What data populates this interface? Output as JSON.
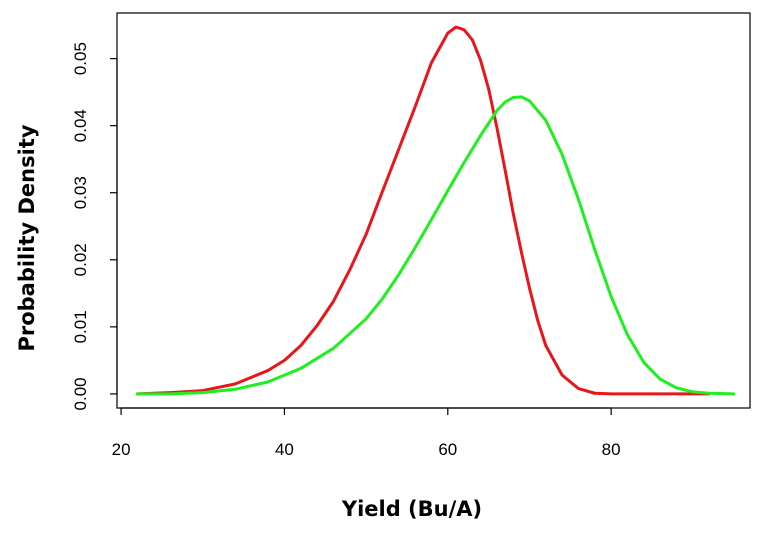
{
  "chart_data": {
    "type": "line",
    "title": "",
    "xlabel": "Yield (Bu/A)",
    "ylabel": "Probability Density",
    "xlim": [
      19.5,
      97
    ],
    "ylim": [
      -0.0021,
      0.0568
    ],
    "x_ticks": [
      20,
      40,
      60,
      80
    ],
    "x_tick_labels": [
      "20",
      "40",
      "60",
      "80"
    ],
    "y_ticks": [
      0.0,
      0.01,
      0.02,
      0.03,
      0.04,
      0.05
    ],
    "y_tick_labels": [
      "0.00",
      "0.01",
      "0.02",
      "0.03",
      "0.04",
      "0.05"
    ],
    "grid": false,
    "legend": "none",
    "series": [
      {
        "color": "#e8161b",
        "x": [
          22,
          26,
          30,
          34,
          38,
          40,
          42,
          44,
          46,
          48,
          50,
          52,
          54,
          56,
          58,
          60,
          61,
          62,
          63,
          64,
          65,
          66,
          67,
          68,
          69,
          70,
          71,
          72,
          74,
          76,
          78,
          80,
          84,
          88,
          92
        ],
        "y": [
          0.0,
          0.0002,
          0.0005,
          0.0015,
          0.0035,
          0.005,
          0.0072,
          0.0102,
          0.0138,
          0.0185,
          0.0238,
          0.0302,
          0.0365,
          0.0428,
          0.0494,
          0.0538,
          0.0547,
          0.0543,
          0.0528,
          0.0498,
          0.0455,
          0.0398,
          0.0335,
          0.027,
          0.0212,
          0.0158,
          0.011,
          0.0072,
          0.0028,
          0.0008,
          0.0001,
          0.0,
          0.0,
          0.0,
          0.0
        ]
      },
      {
        "color": "#1ef01e",
        "x": [
          22,
          26,
          30,
          34,
          38,
          42,
          46,
          50,
          52,
          54,
          56,
          58,
          60,
          62,
          64,
          66,
          67,
          68,
          69,
          70,
          72,
          74,
          76,
          78,
          80,
          82,
          84,
          86,
          88,
          90,
          92,
          95
        ],
        "y": [
          0.0,
          0.0,
          0.0002,
          0.0007,
          0.0018,
          0.0038,
          0.0068,
          0.0112,
          0.0142,
          0.0178,
          0.0218,
          0.026,
          0.0303,
          0.0345,
          0.0385,
          0.0422,
          0.0435,
          0.0442,
          0.0443,
          0.0437,
          0.0408,
          0.0357,
          0.029,
          0.0215,
          0.0145,
          0.0088,
          0.0047,
          0.0022,
          0.0009,
          0.0003,
          0.0001,
          0.0
        ]
      }
    ]
  }
}
